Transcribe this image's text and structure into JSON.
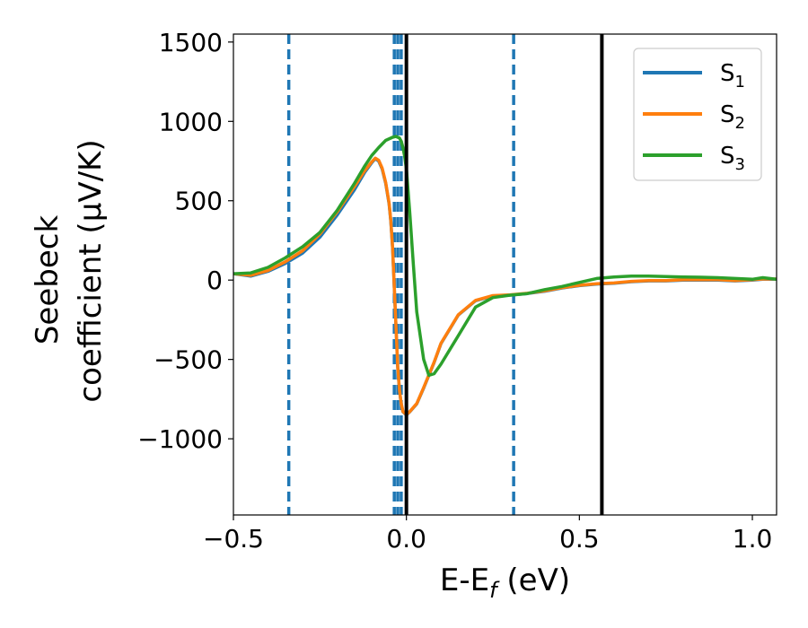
{
  "chart_data": {
    "type": "line",
    "xlabel": "E-E$_f$ (eV)",
    "xlabel_main": "E-E",
    "xlabel_sub": "f",
    "xlabel_tail": " (eV)",
    "ylabel_line1": "Seebeck",
    "ylabel_line2": "coefficient  (μV/K)",
    "xlim": [
      -0.5,
      1.07
    ],
    "ylim": [
      -1480,
      1550
    ],
    "xticks": [
      -0.5,
      0.0,
      0.5,
      1.0
    ],
    "xtick_labels": [
      "−0.5",
      "0.0",
      "0.5",
      "1.0"
    ],
    "yticks": [
      -1000,
      -500,
      0,
      500,
      1000,
      1500
    ],
    "ytick_labels": [
      "−1000",
      "−500",
      "0",
      "500",
      "1000",
      "1500"
    ],
    "legend_position": "top-right",
    "vlines_dashed": [
      -0.34,
      -0.035,
      -0.025,
      -0.015,
      0.31
    ],
    "vlines_dashed_color": "#1f77b4",
    "vlines_solid": [
      0.0,
      0.565
    ],
    "vlines_solid_color": "#000000",
    "series": [
      {
        "name": "S1",
        "label_main": "S",
        "label_sub": "1",
        "color": "#1f77b4",
        "x": [
          -0.5,
          -0.45,
          -0.4,
          -0.35,
          -0.3,
          -0.25,
          -0.2,
          -0.15,
          -0.12,
          -0.1,
          -0.09,
          -0.08,
          -0.07,
          -0.06,
          -0.05,
          -0.045,
          -0.04,
          -0.035,
          -0.03,
          -0.025,
          -0.02,
          -0.015,
          -0.01,
          0.0,
          0.01,
          0.03,
          0.05,
          0.08,
          0.1,
          0.15,
          0.2,
          0.25,
          0.3,
          0.35,
          0.4,
          0.45,
          0.5,
          0.55,
          0.6,
          0.65,
          0.7,
          0.75,
          0.8,
          0.85,
          0.9,
          0.95,
          1.0,
          1.03,
          1.07
        ],
        "y": [
          40,
          25,
          55,
          105,
          170,
          270,
          410,
          570,
          680,
          740,
          765,
          750,
          700,
          610,
          480,
          370,
          200,
          -50,
          -300,
          -550,
          -700,
          -780,
          -830,
          -850,
          -830,
          -780,
          -680,
          -520,
          -400,
          -220,
          -130,
          -100,
          -95,
          -85,
          -70,
          -50,
          -35,
          -25,
          -20,
          -10,
          -5,
          -5,
          0,
          0,
          0,
          -5,
          0,
          5,
          5
        ]
      },
      {
        "name": "S2",
        "label_main": "S",
        "label_sub": "2",
        "color": "#ff7f0e",
        "x": [
          -0.5,
          -0.45,
          -0.4,
          -0.35,
          -0.3,
          -0.25,
          -0.2,
          -0.15,
          -0.12,
          -0.1,
          -0.09,
          -0.08,
          -0.07,
          -0.06,
          -0.05,
          -0.045,
          -0.04,
          -0.035,
          -0.03,
          -0.025,
          -0.02,
          -0.015,
          -0.01,
          0.0,
          0.01,
          0.03,
          0.05,
          0.08,
          0.1,
          0.15,
          0.2,
          0.25,
          0.3,
          0.35,
          0.4,
          0.45,
          0.5,
          0.55,
          0.6,
          0.65,
          0.7,
          0.75,
          0.8,
          0.85,
          0.9,
          0.95,
          1.0,
          1.03,
          1.07
        ],
        "y": [
          40,
          30,
          60,
          115,
          185,
          290,
          430,
          590,
          690,
          745,
          768,
          755,
          705,
          615,
          485,
          375,
          205,
          -45,
          -295,
          -545,
          -695,
          -778,
          -828,
          -848,
          -828,
          -778,
          -678,
          -518,
          -398,
          -218,
          -128,
          -98,
          -93,
          -83,
          -68,
          -48,
          -33,
          -23,
          -18,
          -8,
          -3,
          -3,
          2,
          2,
          2,
          -3,
          2,
          7,
          7
        ]
      },
      {
        "name": "S3",
        "label_main": "S",
        "label_sub": "3",
        "color": "#2ca02c",
        "x": [
          -0.5,
          -0.45,
          -0.4,
          -0.35,
          -0.3,
          -0.25,
          -0.2,
          -0.15,
          -0.12,
          -0.1,
          -0.08,
          -0.06,
          -0.04,
          -0.03,
          -0.02,
          -0.015,
          -0.01,
          -0.005,
          0.0,
          0.01,
          0.02,
          0.03,
          0.05,
          0.065,
          0.08,
          0.1,
          0.15,
          0.2,
          0.25,
          0.3,
          0.35,
          0.4,
          0.45,
          0.5,
          0.55,
          0.6,
          0.65,
          0.7,
          0.75,
          0.8,
          0.85,
          0.9,
          0.95,
          1.0,
          1.03,
          1.07
        ],
        "y": [
          40,
          45,
          80,
          140,
          210,
          300,
          440,
          610,
          720,
          785,
          835,
          880,
          900,
          905,
          895,
          875,
          835,
          780,
          700,
          420,
          100,
          -200,
          -500,
          -600,
          -590,
          -530,
          -350,
          -170,
          -110,
          -95,
          -85,
          -60,
          -40,
          -15,
          10,
          20,
          25,
          25,
          22,
          20,
          18,
          15,
          10,
          5,
          15,
          5
        ]
      }
    ]
  }
}
